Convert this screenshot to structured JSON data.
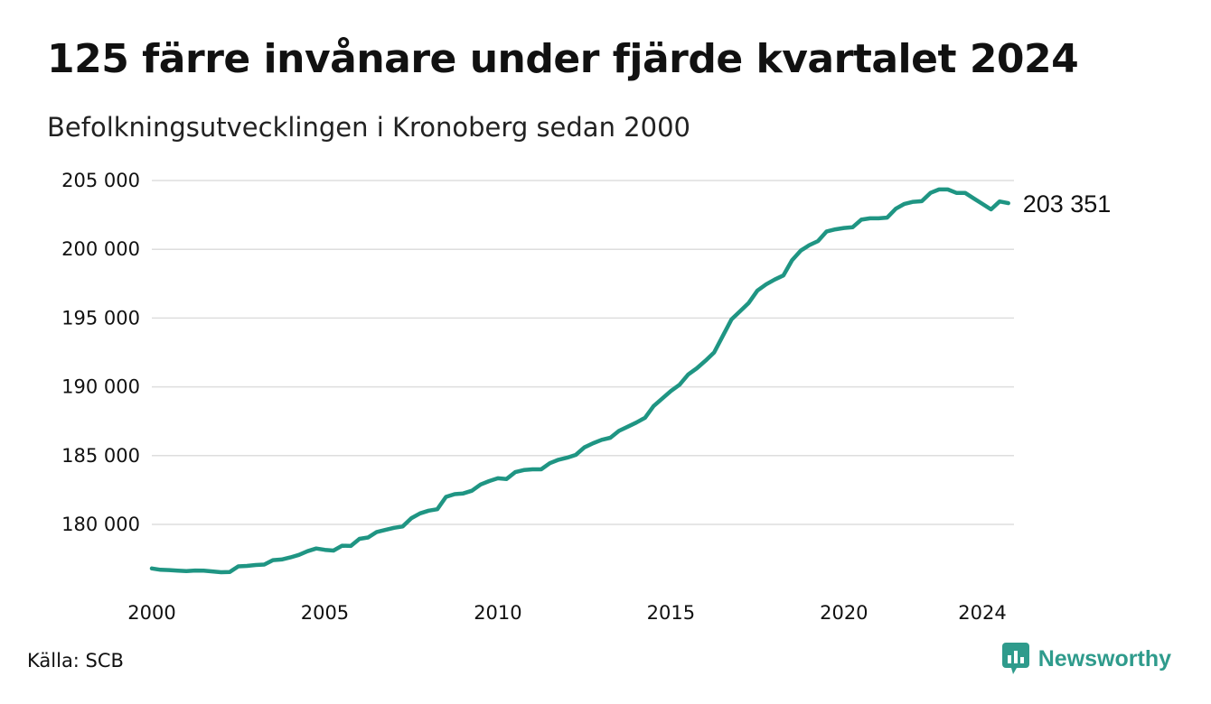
{
  "title": "125 färre invånare under fjärde kvartalet 2024",
  "subtitle": "Befolkningsutvecklingen i Kronoberg sedan 2000",
  "source": "Källa: SCB",
  "brand": {
    "name": "Newsworthy",
    "icon": "newsworthy-logo-icon",
    "color": "#2f9b8c"
  },
  "chart_data": {
    "type": "line",
    "title": "125 färre invånare under fjärde kvartalet 2024",
    "subtitle": "Befolkningsutvecklingen i Kronoberg sedan 2000",
    "xlabel": "",
    "ylabel": "",
    "xlim": [
      2000,
      2025
    ],
    "ylim": [
      176500,
      205500
    ],
    "grid": true,
    "line_color": "#1f9583",
    "x_ticks": [
      2000,
      2005,
      2010,
      2015,
      2020,
      2024
    ],
    "x_tick_labels": [
      "2000",
      "2005",
      "2010",
      "2015",
      "2020",
      "2024"
    ],
    "y_ticks": [
      180000,
      185000,
      190000,
      195000,
      200000,
      205000
    ],
    "y_tick_labels": [
      "180 000",
      "185 000",
      "190 000",
      "195 000",
      "200 000",
      "205 000"
    ],
    "end_label": "203 351",
    "series": [
      {
        "x": [
          2000.0,
          2000.25,
          2000.5,
          2000.75,
          2001.0,
          2001.25,
          2001.5,
          2001.75,
          2002.0,
          2002.25,
          2002.5,
          2002.75,
          2003.0,
          2003.25,
          2003.5,
          2003.75,
          2004.0,
          2004.25,
          2004.5,
          2004.75,
          2005.0,
          2005.25,
          2005.5,
          2005.75,
          2006.0,
          2006.25,
          2006.5,
          2006.75,
          2007.0,
          2007.25,
          2007.5,
          2007.75,
          2008.0,
          2008.25,
          2008.5,
          2008.75,
          2009.0,
          2009.25,
          2009.5,
          2009.75,
          2010.0,
          2010.25,
          2010.5,
          2010.75,
          2011.0,
          2011.25,
          2011.5,
          2011.75,
          2012.0,
          2012.25,
          2012.5,
          2012.75,
          2013.0,
          2013.25,
          2013.5,
          2013.75,
          2014.0,
          2014.25,
          2014.5,
          2014.75,
          2015.0,
          2015.25,
          2015.5,
          2015.75,
          2016.0,
          2016.25,
          2016.5,
          2016.75,
          2017.0,
          2017.25,
          2017.5,
          2017.75,
          2018.0,
          2018.25,
          2018.5,
          2018.75,
          2019.0,
          2019.25,
          2019.5,
          2019.75,
          2020.0,
          2020.25,
          2020.5,
          2020.75,
          2021.0,
          2021.25,
          2021.5,
          2021.75,
          2022.0,
          2022.25,
          2022.5,
          2022.75,
          2023.0,
          2023.25,
          2023.5,
          2023.75,
          2024.0,
          2024.25,
          2024.5,
          2024.75
        ],
        "values": [
          176800,
          176700,
          176680,
          176640,
          176600,
          176650,
          176640,
          176580,
          176520,
          176540,
          176950,
          176980,
          177050,
          177080,
          177400,
          177450,
          177600,
          177780,
          178050,
          178250,
          178150,
          178100,
          178450,
          178430,
          178950,
          179050,
          179450,
          179600,
          179750,
          179850,
          180450,
          180800,
          181000,
          181100,
          182000,
          182200,
          182250,
          182450,
          182900,
          183150,
          183350,
          183300,
          183800,
          183950,
          184000,
          184000,
          184450,
          184700,
          184850,
          185050,
          185600,
          185900,
          186150,
          186300,
          186800,
          187100,
          187400,
          187750,
          188600,
          189150,
          189700,
          190150,
          190900,
          191350,
          191900,
          192500,
          193700,
          194900,
          195500,
          196100,
          197000,
          197450,
          197800,
          198100,
          199200,
          199900,
          200300,
          200600,
          201300,
          201450,
          201550,
          201600,
          202150,
          202250,
          202250,
          202300,
          202950,
          203300,
          203450,
          203500,
          204100,
          204350,
          204350,
          204100,
          204100,
          203700,
          203300,
          202900,
          203476,
          203351
        ]
      }
    ]
  }
}
